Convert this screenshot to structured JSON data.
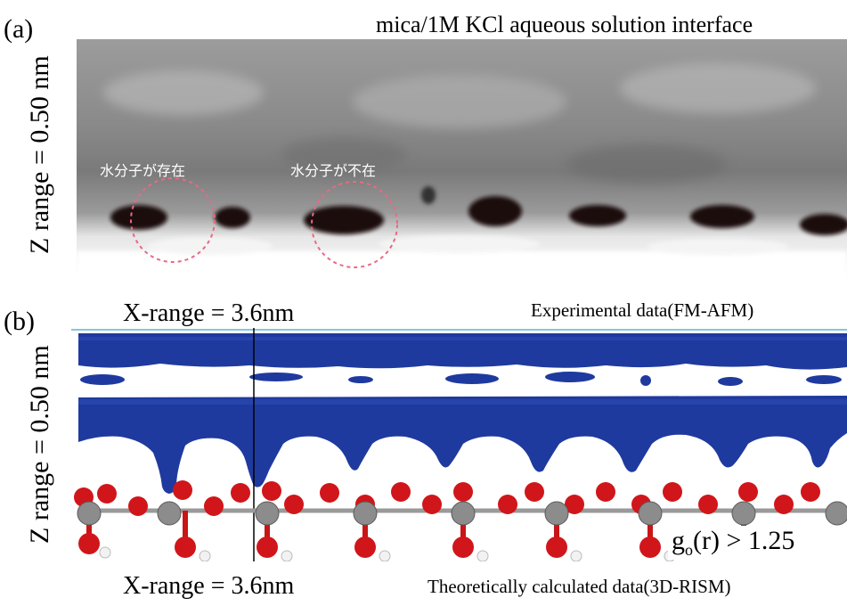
{
  "panel_a": {
    "label": "(a)",
    "title": "mica/1M KCl aqueous solution interface",
    "z_label": "Z range = 0.50 nm",
    "annotation_present": "水分子が存在",
    "annotation_absent": "水分子が不在",
    "x_range_label": "X-range = 3.6nm",
    "caption": "Experimental data(FM-AFM)"
  },
  "panel_b": {
    "label": "(b)",
    "z_label": "Z range = 0.50 nm",
    "x_range_label": "X-range = 3.6nm",
    "caption": "Theoretically calculated data(3D-RISM)",
    "gor_base": "g",
    "gor_sub": "o",
    "gor_rest": "(r) > 1.25"
  },
  "colors": {
    "isosurface": "#1f3a9e",
    "oxygen": "#d0161a",
    "silicon": "#8a8a8a",
    "hydrogen": "#f2f2f2",
    "dashed_circle": "#e86a86"
  }
}
